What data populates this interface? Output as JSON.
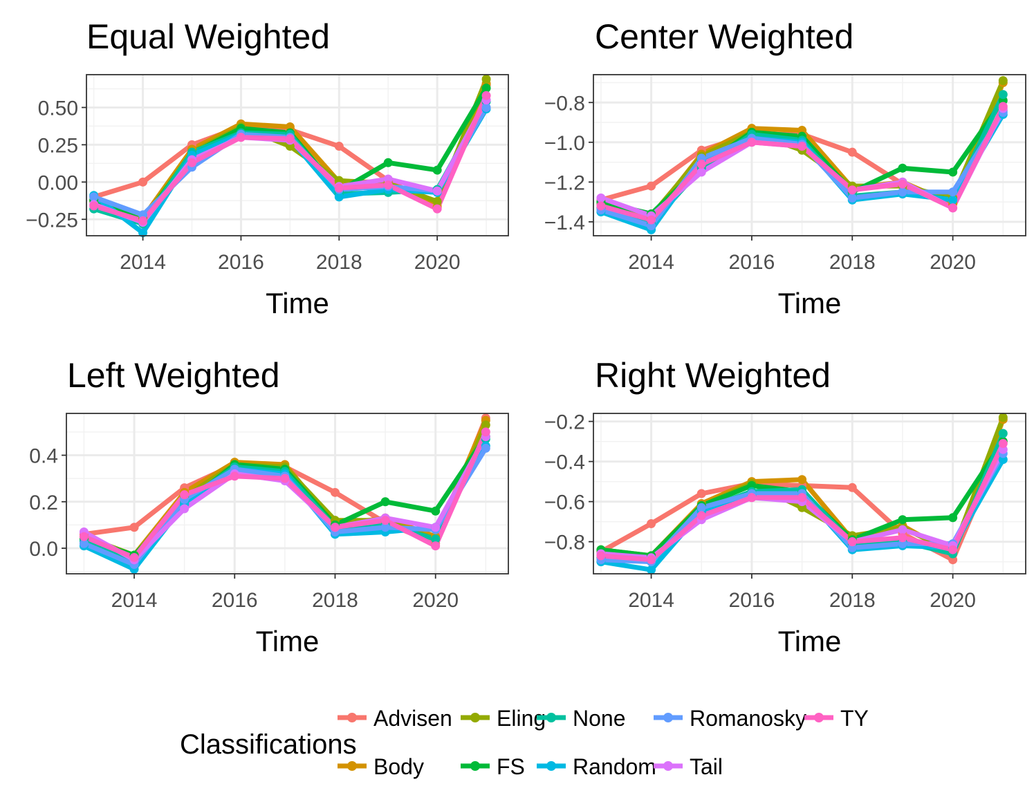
{
  "chart_data": [
    {
      "type": "line",
      "title": "Equal Weighted",
      "xlabel": "Time",
      "ylabel": "",
      "xlim": [
        2012.85,
        2021.45
      ],
      "ylim": [
        -0.36,
        0.72
      ],
      "x_ticks": [
        2014,
        2016,
        2018,
        2020
      ],
      "y_ticks": [
        -0.25,
        0.0,
        0.25,
        0.5
      ],
      "y_tick_labels": [
        "−0.25",
        "0.00",
        "0.25",
        "0.50"
      ],
      "x": [
        2013,
        2014,
        2015,
        2016,
        2017,
        2018,
        2019,
        2020,
        2021
      ],
      "series": [
        {
          "name": "Advisen",
          "values": [
            -0.1,
            0.0,
            0.25,
            0.37,
            0.35,
            0.24,
            0.01,
            -0.16,
            0.65
          ]
        },
        {
          "name": "Body",
          "values": [
            -0.12,
            -0.24,
            0.22,
            0.39,
            0.37,
            0.0,
            0.0,
            -0.17,
            0.66
          ]
        },
        {
          "name": "Eling",
          "values": [
            -0.13,
            -0.25,
            0.2,
            0.37,
            0.24,
            0.01,
            -0.01,
            -0.13,
            0.69
          ]
        },
        {
          "name": "FS",
          "values": [
            -0.12,
            -0.26,
            0.19,
            0.36,
            0.33,
            -0.06,
            0.13,
            0.08,
            0.63
          ]
        },
        {
          "name": "None",
          "values": [
            -0.18,
            -0.28,
            0.2,
            0.33,
            0.32,
            -0.08,
            -0.07,
            -0.05,
            0.54
          ]
        },
        {
          "name": "Random",
          "values": [
            -0.09,
            -0.34,
            0.18,
            0.32,
            0.29,
            -0.1,
            -0.05,
            -0.07,
            0.49
          ]
        },
        {
          "name": "Romanosky",
          "values": [
            -0.1,
            -0.22,
            0.1,
            0.32,
            0.3,
            -0.05,
            -0.03,
            -0.06,
            0.5
          ]
        },
        {
          "name": "Tail",
          "values": [
            -0.15,
            -0.27,
            0.15,
            0.3,
            0.28,
            -0.03,
            0.02,
            -0.06,
            0.55
          ]
        },
        {
          "name": "TY",
          "values": [
            -0.16,
            -0.26,
            0.13,
            0.3,
            0.29,
            -0.04,
            -0.02,
            -0.18,
            0.58
          ]
        }
      ]
    },
    {
      "type": "line",
      "title": "Center Weighted",
      "xlabel": "Time",
      "ylabel": "",
      "xlim": [
        2012.85,
        2021.45
      ],
      "ylim": [
        -1.47,
        -0.66
      ],
      "x_ticks": [
        2014,
        2016,
        2018,
        2020
      ],
      "y_ticks": [
        -1.4,
        -1.2,
        -1.0,
        -0.8
      ],
      "y_tick_labels": [
        "−1.4",
        "−1.2",
        "−1.0",
        "−0.8"
      ],
      "x": [
        2013,
        2014,
        2015,
        2016,
        2017,
        2018,
        2019,
        2020,
        2021
      ],
      "series": [
        {
          "name": "Advisen",
          "values": [
            -1.29,
            -1.22,
            -1.04,
            -0.96,
            -0.96,
            -1.05,
            -1.21,
            -1.3,
            -0.84
          ]
        },
        {
          "name": "Body",
          "values": [
            -1.3,
            -1.38,
            -1.06,
            -0.93,
            -0.94,
            -1.23,
            -1.2,
            -1.31,
            -0.7
          ]
        },
        {
          "name": "Eling",
          "values": [
            -1.31,
            -1.37,
            -1.07,
            -0.95,
            -1.04,
            -1.22,
            -1.22,
            -1.28,
            -0.69
          ]
        },
        {
          "name": "FS",
          "values": [
            -1.3,
            -1.36,
            -1.12,
            -0.95,
            -0.97,
            -1.25,
            -1.13,
            -1.15,
            -0.79
          ]
        },
        {
          "name": "None",
          "values": [
            -1.33,
            -1.41,
            -1.13,
            -0.96,
            -0.99,
            -1.27,
            -1.25,
            -1.29,
            -0.76
          ]
        },
        {
          "name": "Random",
          "values": [
            -1.35,
            -1.44,
            -1.09,
            -0.98,
            -1.0,
            -1.29,
            -1.26,
            -1.29,
            -0.86
          ]
        },
        {
          "name": "Romanosky",
          "values": [
            -1.34,
            -1.42,
            -1.08,
            -0.98,
            -1.01,
            -1.28,
            -1.25,
            -1.25,
            -0.85
          ]
        },
        {
          "name": "Tail",
          "values": [
            -1.28,
            -1.37,
            -1.15,
            -1.0,
            -1.02,
            -1.24,
            -1.2,
            -1.33,
            -0.83
          ]
        },
        {
          "name": "TY",
          "values": [
            -1.32,
            -1.39,
            -1.11,
            -1.0,
            -1.02,
            -1.24,
            -1.21,
            -1.33,
            -0.82
          ]
        }
      ]
    },
    {
      "type": "line",
      "title": "Left Weighted",
      "xlabel": "Time",
      "ylabel": "",
      "xlim": [
        2012.65,
        2021.45
      ],
      "ylim": [
        -0.11,
        0.58
      ],
      "x_ticks": [
        2014,
        2016,
        2018,
        2020
      ],
      "y_ticks": [
        0.0,
        0.2,
        0.4
      ],
      "y_tick_labels": [
        "0.0",
        "0.2",
        "0.4"
      ],
      "x": [
        2013,
        2014,
        2015,
        2016,
        2017,
        2018,
        2019,
        2020,
        2021
      ],
      "series": [
        {
          "name": "Advisen",
          "values": [
            0.06,
            0.09,
            0.26,
            0.36,
            0.35,
            0.24,
            0.11,
            0.02,
            0.56
          ]
        },
        {
          "name": "Body",
          "values": [
            0.04,
            -0.03,
            0.24,
            0.37,
            0.36,
            0.1,
            0.13,
            0.05,
            0.55
          ]
        },
        {
          "name": "Eling",
          "values": [
            0.05,
            -0.03,
            0.22,
            0.36,
            0.35,
            0.12,
            0.12,
            0.04,
            0.53
          ]
        },
        {
          "name": "FS",
          "values": [
            0.04,
            -0.03,
            0.19,
            0.36,
            0.34,
            0.1,
            0.2,
            0.16,
            0.48
          ]
        },
        {
          "name": "None",
          "values": [
            0.03,
            -0.05,
            0.2,
            0.35,
            0.33,
            0.09,
            0.1,
            0.04,
            0.47
          ]
        },
        {
          "name": "Random",
          "values": [
            0.01,
            -0.09,
            0.19,
            0.34,
            0.32,
            0.06,
            0.07,
            0.09,
            0.44
          ]
        },
        {
          "name": "Romanosky",
          "values": [
            0.02,
            -0.07,
            0.21,
            0.34,
            0.31,
            0.07,
            0.09,
            0.08,
            0.43
          ]
        },
        {
          "name": "Tail",
          "values": [
            0.07,
            -0.05,
            0.17,
            0.32,
            0.29,
            0.09,
            0.13,
            0.09,
            0.48
          ]
        },
        {
          "name": "TY",
          "values": [
            0.05,
            -0.04,
            0.23,
            0.31,
            0.3,
            0.09,
            0.12,
            0.01,
            0.5
          ]
        }
      ]
    },
    {
      "type": "line",
      "title": "Right Weighted",
      "xlabel": "Time",
      "ylabel": "",
      "xlim": [
        2012.85,
        2021.45
      ],
      "ylim": [
        -0.96,
        -0.16
      ],
      "x_ticks": [
        2014,
        2016,
        2018,
        2020
      ],
      "y_ticks": [
        -0.8,
        -0.6,
        -0.4,
        -0.2
      ],
      "y_tick_labels": [
        "−0.8",
        "−0.6",
        "−0.4",
        "−0.2"
      ],
      "x": [
        2013,
        2014,
        2015,
        2016,
        2017,
        2018,
        2019,
        2020,
        2021
      ],
      "series": [
        {
          "name": "Advisen",
          "values": [
            -0.85,
            -0.71,
            -0.56,
            -0.51,
            -0.52,
            -0.53,
            -0.76,
            -0.89,
            -0.3
          ]
        },
        {
          "name": "Body",
          "values": [
            -0.85,
            -0.87,
            -0.61,
            -0.5,
            -0.49,
            -0.79,
            -0.72,
            -0.86,
            -0.19
          ]
        },
        {
          "name": "Eling",
          "values": [
            -0.84,
            -0.87,
            -0.62,
            -0.51,
            -0.63,
            -0.77,
            -0.73,
            -0.85,
            -0.18
          ]
        },
        {
          "name": "FS",
          "values": [
            -0.84,
            -0.87,
            -0.62,
            -0.52,
            -0.55,
            -0.79,
            -0.69,
            -0.68,
            -0.3
          ]
        },
        {
          "name": "None",
          "values": [
            -0.88,
            -0.9,
            -0.64,
            -0.55,
            -0.54,
            -0.81,
            -0.8,
            -0.86,
            -0.26
          ]
        },
        {
          "name": "Random",
          "values": [
            -0.9,
            -0.94,
            -0.65,
            -0.57,
            -0.56,
            -0.84,
            -0.82,
            -0.83,
            -0.39
          ]
        },
        {
          "name": "Romanosky",
          "values": [
            -0.89,
            -0.9,
            -0.63,
            -0.56,
            -0.56,
            -0.83,
            -0.81,
            -0.81,
            -0.36
          ]
        },
        {
          "name": "Tail",
          "values": [
            -0.86,
            -0.88,
            -0.69,
            -0.58,
            -0.6,
            -0.8,
            -0.74,
            -0.82,
            -0.34
          ]
        },
        {
          "name": "TY",
          "values": [
            -0.87,
            -0.89,
            -0.67,
            -0.58,
            -0.58,
            -0.8,
            -0.78,
            -0.84,
            -0.31
          ]
        }
      ]
    }
  ],
  "legend": {
    "title": "Classifications",
    "placement": "bottom",
    "items": [
      {
        "name": "Advisen",
        "color": "#F8766D"
      },
      {
        "name": "Body",
        "color": "#D39200"
      },
      {
        "name": "Eling",
        "color": "#93AA00"
      },
      {
        "name": "FS",
        "color": "#00BA38"
      },
      {
        "name": "None",
        "color": "#00C19F"
      },
      {
        "name": "Random",
        "color": "#00B9E3"
      },
      {
        "name": "Romanosky",
        "color": "#619CFF"
      },
      {
        "name": "Tail",
        "color": "#DB72FB"
      },
      {
        "name": "TY",
        "color": "#FF61C3"
      }
    ]
  }
}
